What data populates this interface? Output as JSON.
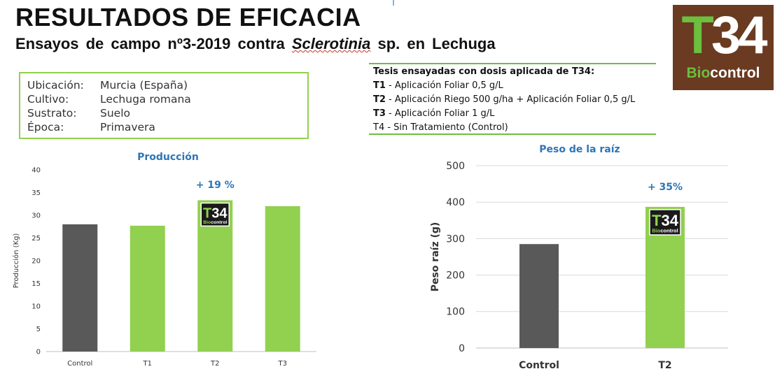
{
  "header": {
    "title": "RESULTADOS DE EFICACIA",
    "subtitle_pre": "Ensayos de campo nº3-2019 contra ",
    "subtitle_species": "Sclerotinia",
    "subtitle_post": " sp. en Lechuga"
  },
  "logo": {
    "mark_t": "T",
    "mark_num": "34",
    "brand_bio": "Bio",
    "brand_rest": "control"
  },
  "info": [
    {
      "key": "Ubicación:",
      "value": "Murcia (España)"
    },
    {
      "key": "Cultivo:",
      "value": "Lechuga romana"
    },
    {
      "key": "Sustrato:",
      "value": "Suelo"
    },
    {
      "key": "Época:",
      "value": "Primavera"
    }
  ],
  "tesis": {
    "heading": "Tesis ensayadas con dosis aplicada de T34:",
    "items": [
      {
        "code": "T1",
        "text": " - Aplicación Foliar 0,5 g/L"
      },
      {
        "code": "T2",
        "text": " - Aplicación Riego 500 g/ha + Aplicación Foliar 0,5 g/L"
      },
      {
        "code": "T3",
        "text": " - Aplicación Foliar  1 g/L"
      },
      {
        "code": "",
        "text": "T4 - Sin Tratamiento (Control)"
      }
    ]
  },
  "colors": {
    "green": "#92d050",
    "gray": "#595959",
    "blue_title": "#2e75b6",
    "brown": "#6a3a21"
  },
  "chart_data": [
    {
      "type": "bar",
      "title": "Producción",
      "xlabel": "",
      "ylabel": "Producción (Kg)",
      "categories": [
        "Control",
        "T1",
        "T2",
        "T3"
      ],
      "values": [
        28,
        27.7,
        33.3,
        32
      ],
      "bar_colors": [
        "#595959",
        "#92d050",
        "#92d050",
        "#92d050"
      ],
      "ylim": [
        0,
        40
      ],
      "yticks": [
        0,
        5,
        10,
        15,
        20,
        25,
        30,
        35,
        40
      ],
      "annotation": {
        "text": "+ 19 %",
        "category": "T2"
      },
      "badge_on": "T2",
      "grid": false
    },
    {
      "type": "bar",
      "title": "Peso de la raíz",
      "xlabel": "",
      "ylabel": "Peso raíz (g)",
      "categories": [
        "Control",
        "T2"
      ],
      "values": [
        285,
        387
      ],
      "bar_colors": [
        "#595959",
        "#92d050"
      ],
      "ylim": [
        0,
        500
      ],
      "yticks": [
        0,
        100,
        200,
        300,
        400,
        500
      ],
      "annotation": {
        "text": "+ 35%",
        "category": "T2"
      },
      "badge_on": "T2",
      "grid": true
    }
  ]
}
